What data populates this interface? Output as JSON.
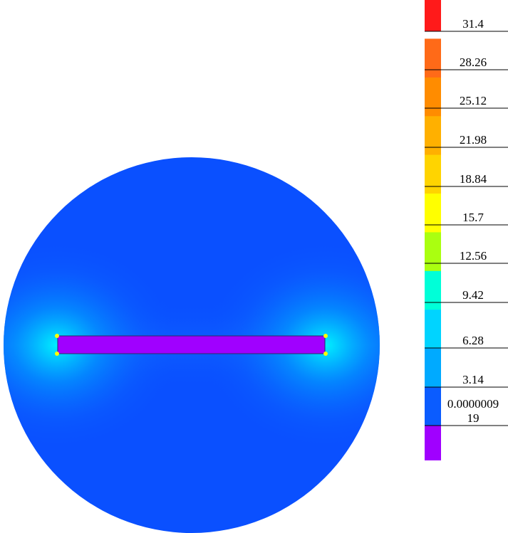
{
  "chart_data": {
    "type": "heatmap",
    "title": "",
    "xlabel": "",
    "ylabel": "",
    "colorbar": {
      "orientation": "vertical",
      "placement": "right",
      "tick_labels": [
        "31.4",
        "28.26",
        "25.12",
        "21.98",
        "18.84",
        "15.7",
        "12.56",
        "9.42",
        "6.28",
        "3.14",
        "0.0000009\n19"
      ],
      "tick_values": [
        31.4,
        28.26,
        25.12,
        21.98,
        18.84,
        15.7,
        12.56,
        9.42,
        6.28,
        3.14,
        9.19e-07
      ],
      "bands": [
        {
          "color": "#ff1a1a"
        },
        {
          "color": "#ff6a18"
        },
        {
          "color": "#ff8c00"
        },
        {
          "color": "#ffb000"
        },
        {
          "color": "#ffd400"
        },
        {
          "color": "#ffff00"
        },
        {
          "color": "#aaff10"
        },
        {
          "color": "#00ffd8"
        },
        {
          "color": "#00d4ff"
        },
        {
          "color": "#00aaff"
        },
        {
          "color": "#0a5cff"
        },
        {
          "color": "#a000ff"
        }
      ]
    },
    "domain": {
      "shape": "circle",
      "background_color": "#0a50ff",
      "inner_conductor": {
        "shape": "rectangle",
        "value": 0,
        "color": "#a000ff"
      },
      "hotspots": [
        {
          "location": "left tip",
          "max_color": "#ffff00"
        },
        {
          "location": "right tip",
          "max_color": "#ffff00"
        }
      ]
    }
  }
}
